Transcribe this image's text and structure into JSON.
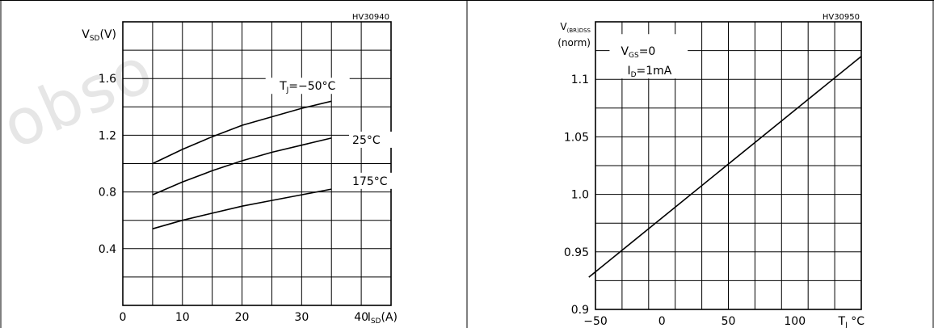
{
  "watermark": "obso",
  "chart_data": [
    {
      "type": "line",
      "code": "HV30940",
      "ylabel": {
        "main": "V",
        "sub": "SD",
        "unit": "(V)"
      },
      "xlabel": {
        "main": "I",
        "sub": "SD",
        "unit": "(A)"
      },
      "xlim": [
        0,
        45
      ],
      "ylim": [
        0,
        2.0
      ],
      "x_ticks": [
        {
          "v": 0,
          "label": "0"
        },
        {
          "v": 10,
          "label": "10"
        },
        {
          "v": 20,
          "label": "20"
        },
        {
          "v": 30,
          "label": "30"
        },
        {
          "v": 40,
          "label": "40"
        }
      ],
      "y_ticks": [
        {
          "v": 0.4,
          "label": "0.4"
        },
        {
          "v": 0.8,
          "label": "0.8"
        },
        {
          "v": 1.2,
          "label": "1.2"
        },
        {
          "v": 1.6,
          "label": "1.6"
        }
      ],
      "grid": true,
      "series": [
        {
          "label": {
            "pre": "T",
            "sub": "J",
            "post": "=−50°C"
          },
          "x": [
            5,
            10,
            15,
            20,
            25,
            30,
            35
          ],
          "y": [
            1.0,
            1.1,
            1.19,
            1.27,
            1.33,
            1.39,
            1.44
          ]
        },
        {
          "label": {
            "pre": "25°C",
            "sub": "",
            "post": ""
          },
          "x": [
            5,
            10,
            15,
            20,
            25,
            30,
            35
          ],
          "y": [
            0.78,
            0.87,
            0.95,
            1.02,
            1.08,
            1.13,
            1.18
          ]
        },
        {
          "label": {
            "pre": "175°C",
            "sub": "",
            "post": ""
          },
          "x": [
            5,
            10,
            15,
            20,
            25,
            30,
            35
          ],
          "y": [
            0.54,
            0.6,
            0.65,
            0.7,
            0.74,
            0.78,
            0.82
          ]
        }
      ]
    },
    {
      "type": "line",
      "code": "HV30950",
      "ylabel": {
        "main": "V",
        "sub": "(BR)DSS",
        "unit": "",
        "line2": "(norm)"
      },
      "xlabel": {
        "main": "T",
        "sub": "J",
        "unit": " °C"
      },
      "xlim": [
        -50,
        150
      ],
      "ylim": [
        0.9,
        1.15
      ],
      "x_ticks": [
        {
          "v": -50,
          "label": "−50"
        },
        {
          "v": 0,
          "label": "0"
        },
        {
          "v": 50,
          "label": "50"
        },
        {
          "v": 100,
          "label": "100"
        }
      ],
      "y_ticks": [
        {
          "v": 0.9,
          "label": "0.9"
        },
        {
          "v": 0.95,
          "label": "0.95"
        },
        {
          "v": 1.0,
          "label": "1.0"
        },
        {
          "v": 1.05,
          "label": "1.05"
        },
        {
          "v": 1.1,
          "label": "1.1"
        }
      ],
      "grid": true,
      "conditions": [
        {
          "pre": "V",
          "sub": "GS",
          "post": "=0"
        },
        {
          "pre": "I",
          "sub": "D",
          "post": "=1mA"
        }
      ],
      "series": [
        {
          "x": [
            -55,
            150
          ],
          "y": [
            0.928,
            1.12
          ]
        }
      ]
    }
  ]
}
